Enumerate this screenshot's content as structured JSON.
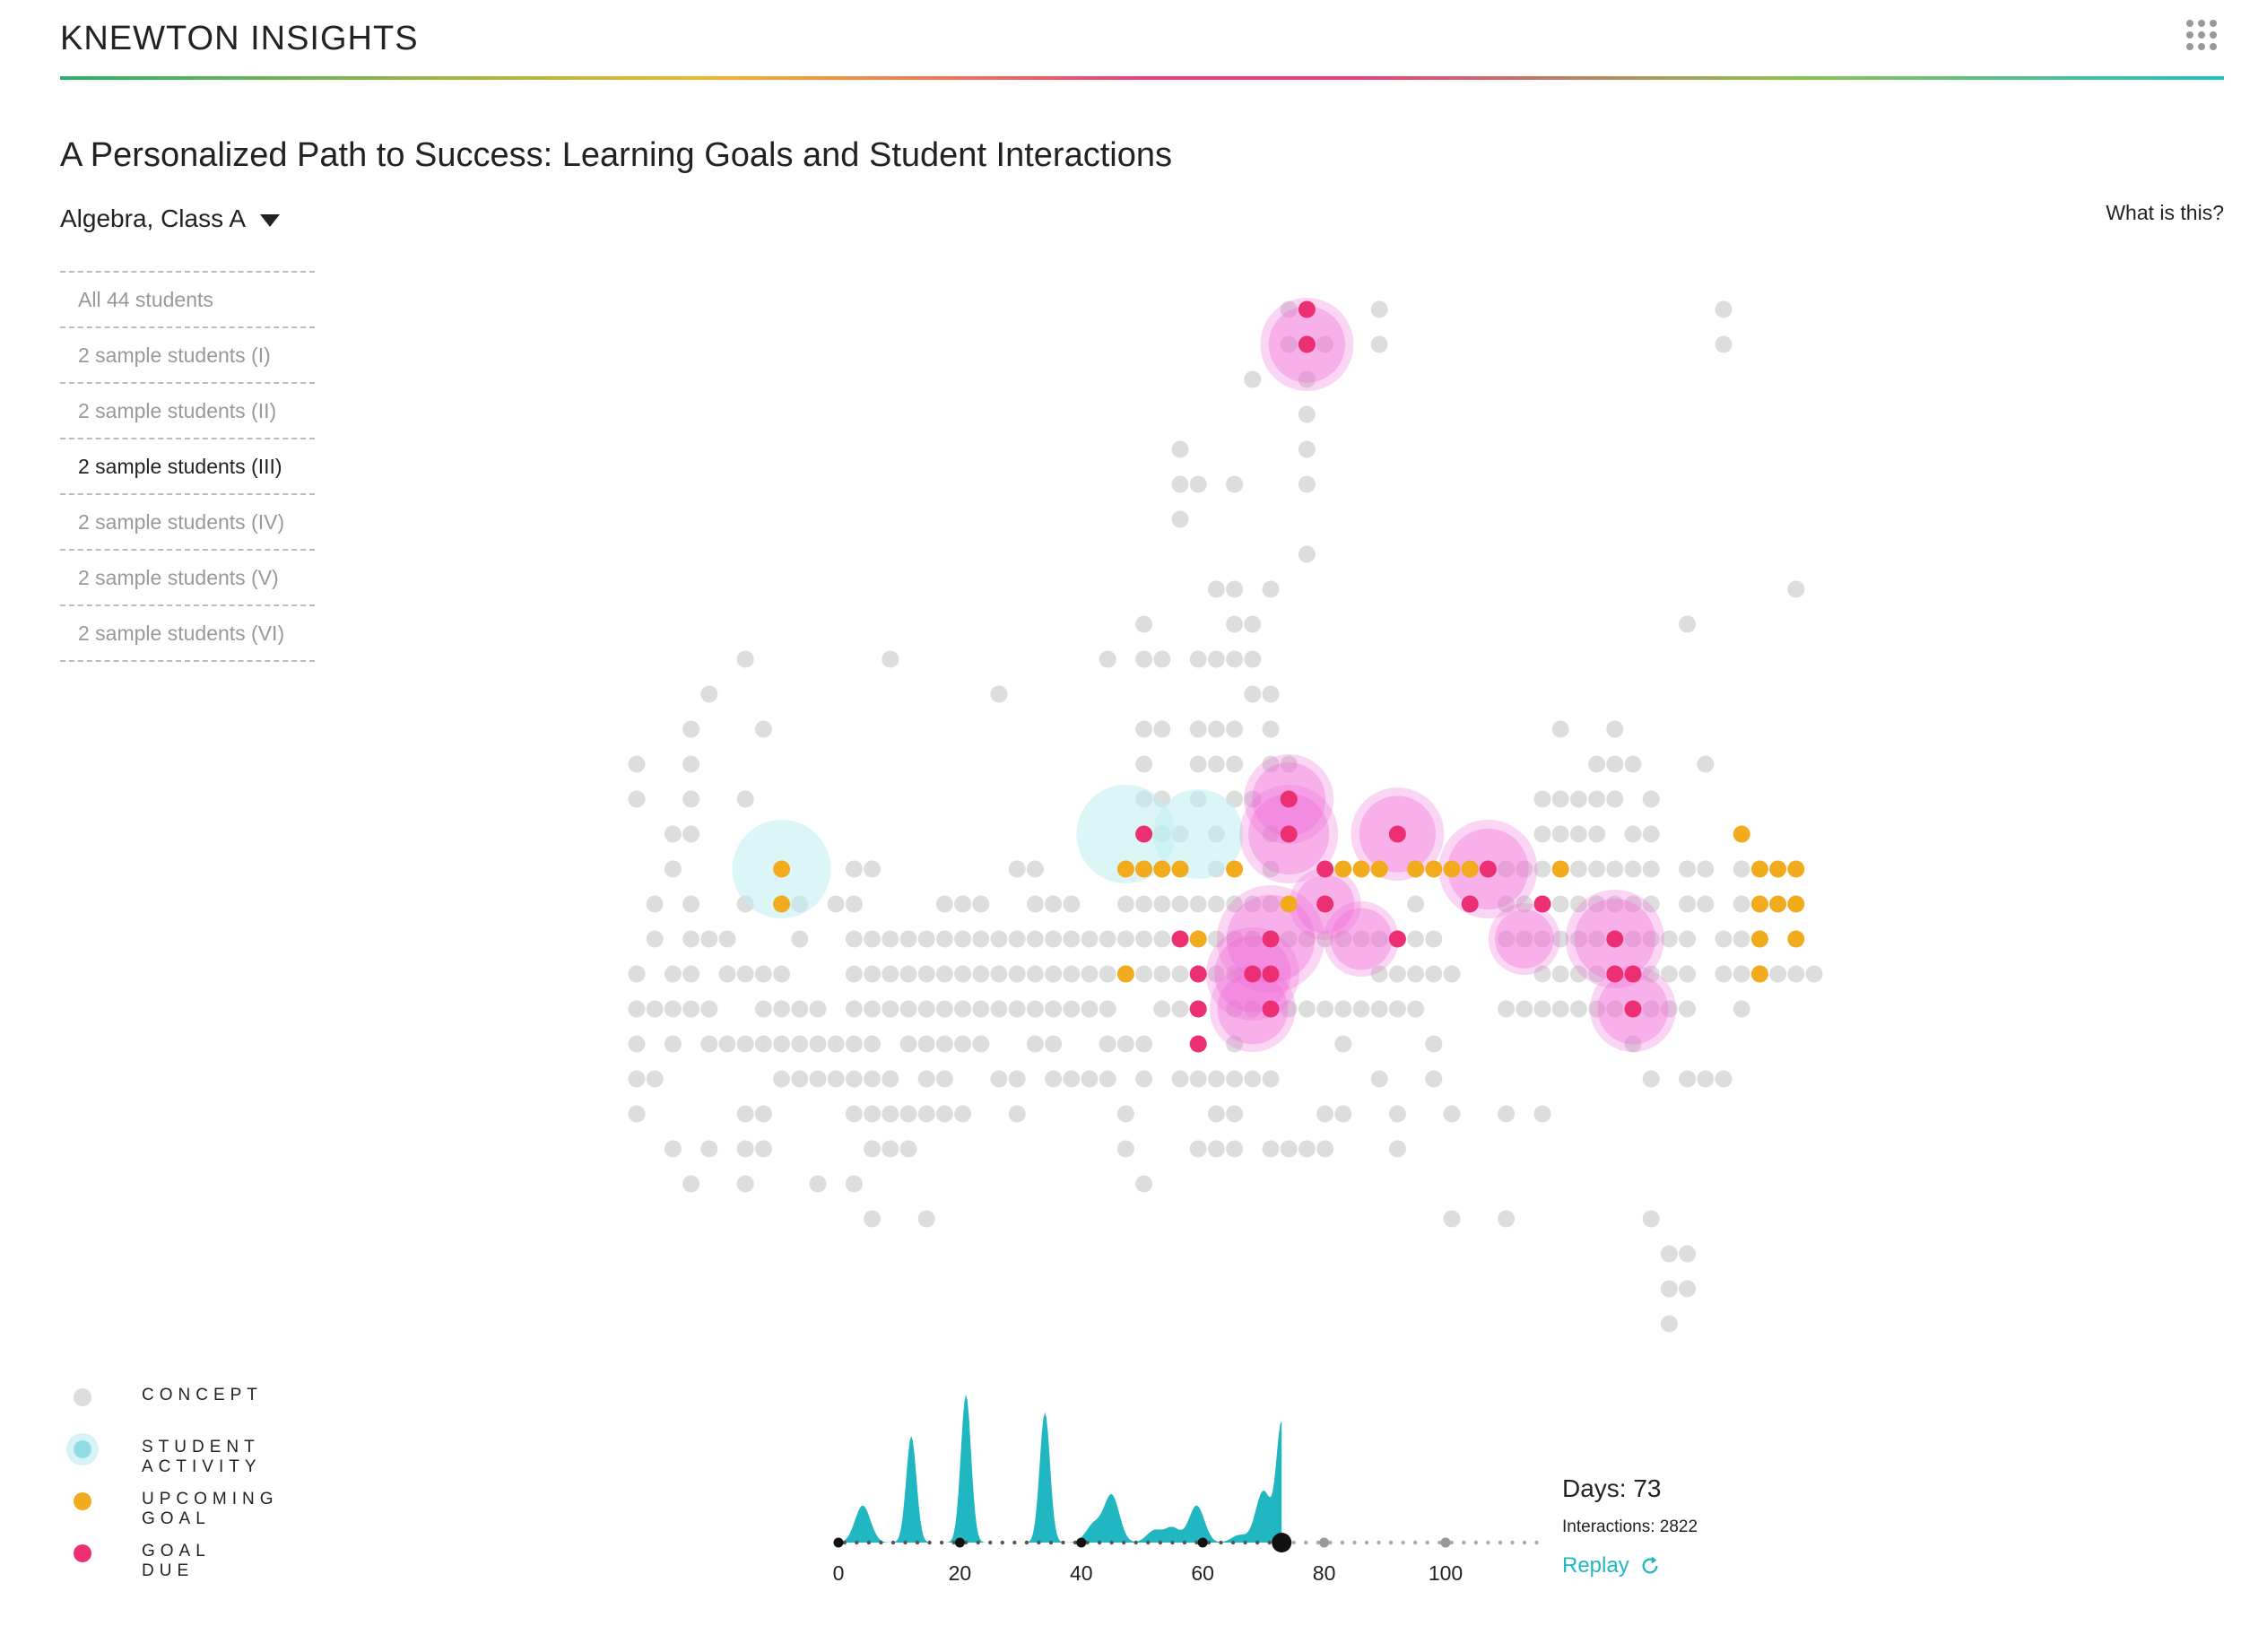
{
  "header": {
    "brand": "KNEWTON INSIGHTS",
    "apps_icon": "grid-apps-icon"
  },
  "page": {
    "title": "A Personalized Path to Success: Learning Goals and Student Interactions",
    "class_selector": "Algebra, Class A",
    "help_link": "What is this?"
  },
  "students": [
    {
      "label": "All 44 students",
      "active": false
    },
    {
      "label": "2 sample students (I)",
      "active": false
    },
    {
      "label": "2 sample students (II)",
      "active": false
    },
    {
      "label": "2 sample students (III)",
      "active": true
    },
    {
      "label": "2 sample students (IV)",
      "active": false
    },
    {
      "label": "2 sample students (V)",
      "active": false
    },
    {
      "label": "2 sample students (VI)",
      "active": false
    }
  ],
  "legend": [
    {
      "label": "CONCEPT",
      "color": "#dddddd"
    },
    {
      "label": "STUDENT ACTIVITY",
      "color": "#8fdde2"
    },
    {
      "label": "UPCOMING GOAL",
      "color": "#f2ab1d"
    },
    {
      "label": "GOAL DUE",
      "color": "#ec2f73"
    }
  ],
  "colors": {
    "concept": "#dddddd",
    "activity": "#bfeef0",
    "upcoming": "#f2ab1d",
    "due": "#ec2f73",
    "halo": "#f06ad8",
    "timeline": "#20b7c2"
  },
  "timeline": {
    "ticks": [
      0,
      20,
      40,
      60,
      80,
      100
    ],
    "current_day": 73,
    "max_day": 115,
    "peaks": [
      [
        4,
        0.25
      ],
      [
        12,
        0.72
      ],
      [
        21,
        1.0
      ],
      [
        34,
        0.88
      ],
      [
        42,
        0.12
      ],
      [
        45,
        0.32
      ],
      [
        52,
        0.08
      ],
      [
        55,
        0.1
      ],
      [
        59,
        0.25
      ],
      [
        66,
        0.05
      ],
      [
        70,
        0.35
      ],
      [
        73,
        0.8
      ]
    ]
  },
  "stats": {
    "days": "Days: 73",
    "interactions": "Interactions: 2822",
    "replay": "Replay"
  }
}
